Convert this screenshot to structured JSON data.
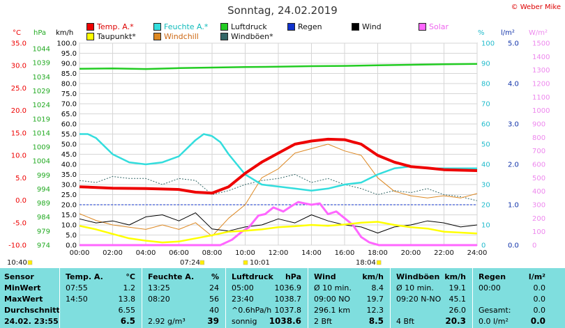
{
  "title": "Sonntag, 24.02.2019",
  "copyright": "© Weber Mike",
  "legend": [
    {
      "label": "Temp. A.*",
      "color": "#ee0000"
    },
    {
      "label": "Feuchte A.*",
      "color": "#33dddd"
    },
    {
      "label": "Luftdruck",
      "color": "#22cc22"
    },
    {
      "label": "Regen",
      "color": "#1133cc"
    },
    {
      "label": "Wind",
      "color": "#000000"
    },
    {
      "label": "Solar",
      "color": "#ff66ff"
    },
    {
      "label": "Taupunkt*",
      "color": "#ffff00"
    },
    {
      "label": "Windchill",
      "color": "#dd8822"
    },
    {
      "label": "Windböen*",
      "color": "#336666"
    }
  ],
  "axes": {
    "temp": {
      "unit": "°C",
      "ticks": [
        "35.0",
        "30.0",
        "25.0",
        "20.0",
        "15.0",
        "10.0",
        "5.0",
        "0.0",
        "-5.0",
        "-10.0"
      ],
      "range": [
        -10,
        35
      ],
      "color": "#ee0000"
    },
    "pressure": {
      "unit": "hPa",
      "ticks": [
        "1044",
        "1039",
        "1034",
        "1029",
        "1024",
        "1019",
        "1014",
        "1009",
        "1004",
        "999",
        "994",
        "989",
        "984",
        "979",
        "974"
      ],
      "range": [
        974,
        1046
      ],
      "color": "#22aa22"
    },
    "wind": {
      "unit": "km/h",
      "ticks": [
        "100.0",
        "95.0",
        "90.0",
        "85.0",
        "80.0",
        "75.0",
        "70.0",
        "65.0",
        "60.0",
        "55.0",
        "50.0",
        "45.0",
        "40.0",
        "35.0",
        "30.0",
        "25.0",
        "20.0",
        "15.0",
        "10.0",
        "5.0",
        "0.0"
      ],
      "range": [
        0,
        100
      ],
      "color": "#000000"
    },
    "humidity": {
      "unit": "%",
      "ticks": [
        "100",
        "90",
        "80",
        "70",
        "60",
        "50",
        "40",
        "30",
        "20",
        "10",
        "0"
      ],
      "range": [
        0,
        100
      ],
      "color": "#22bbcc"
    },
    "rain": {
      "unit": "l/m²",
      "ticks": [
        "5.0",
        "4.0",
        "3.0",
        "2.0",
        "1.0",
        "0.0"
      ],
      "range": [
        0,
        5
      ],
      "color": "#1133aa"
    },
    "solar": {
      "unit": "W/m²",
      "ticks": [
        "1500",
        "1400",
        "1300",
        "1200",
        "1100",
        "1000",
        "900",
        "800",
        "700",
        "600",
        "500",
        "400",
        "300",
        "200",
        "100",
        "0"
      ],
      "range": [
        0,
        1500
      ],
      "color": "#ee88ee"
    },
    "x_ticks": [
      "00:00",
      "02:00",
      "04:00",
      "06:00",
      "08:00",
      "10:00",
      "12:00",
      "14:00",
      "16:00",
      "18:00",
      "20:00",
      "22:00",
      "24:00"
    ]
  },
  "time_markers": [
    {
      "label": "10:40",
      "hour": null
    },
    {
      "label": "07:24",
      "hour": 7.4
    },
    {
      "label": "10:01",
      "hour": 10.02
    },
    {
      "label": "18:04",
      "hour": 18.07
    }
  ],
  "chart_data": {
    "type": "line",
    "x_range": [
      0,
      24
    ],
    "series": [
      {
        "name": "Temp. A.*",
        "axis": "temp",
        "color": "#ee0000",
        "x": [
          0,
          2,
          4,
          6,
          7,
          8,
          9,
          10,
          11,
          12,
          13,
          14,
          15,
          16,
          17,
          18,
          19,
          20,
          21,
          22,
          23,
          24
        ],
        "y": [
          3.0,
          2.7,
          2.6,
          2.4,
          1.8,
          1.6,
          3.0,
          6.0,
          8.5,
          10.5,
          12.5,
          13.2,
          13.6,
          13.5,
          12.5,
          10.0,
          8.5,
          7.5,
          7.2,
          6.8,
          6.7,
          6.6
        ]
      },
      {
        "name": "Feuchte A.*",
        "axis": "humidity",
        "color": "#33dddd",
        "x": [
          0,
          0.5,
          1,
          2,
          3,
          4,
          5,
          6,
          7,
          7.5,
          8,
          8.5,
          9,
          10,
          11,
          12,
          13,
          14,
          15,
          16,
          17,
          18,
          19,
          20,
          21,
          22,
          23,
          24
        ],
        "y": [
          55,
          55,
          53,
          45,
          41,
          40,
          41,
          44,
          52,
          55,
          54,
          51,
          45,
          35,
          30,
          29,
          28,
          27,
          28,
          30,
          31,
          35,
          38,
          39,
          38,
          38,
          38,
          38
        ]
      },
      {
        "name": "Luftdruck",
        "axis": "pressure",
        "color": "#22cc22",
        "x": [
          0,
          2,
          4,
          6,
          8,
          10,
          12,
          14,
          16,
          18,
          20,
          22,
          24
        ],
        "y": [
          1036.9,
          1037.0,
          1036.8,
          1037.1,
          1037.3,
          1037.5,
          1037.6,
          1037.8,
          1037.9,
          1038.1,
          1038.3,
          1038.5,
          1038.6
        ]
      },
      {
        "name": "Taupunkt*",
        "axis": "temp",
        "color": "#ffff00",
        "x": [
          0,
          1,
          2,
          3,
          4,
          5,
          6,
          7,
          8,
          9,
          10,
          11,
          12,
          13,
          14,
          15,
          16,
          17,
          18,
          19,
          20,
          21,
          22,
          23,
          24
        ],
        "y": [
          -5.7,
          -6.5,
          -7.5,
          -8.5,
          -9.0,
          -9.4,
          -9.2,
          -8.5,
          -7.8,
          -7.0,
          -6.8,
          -6.5,
          -6.0,
          -5.8,
          -5.5,
          -5.7,
          -5.4,
          -5.0,
          -4.8,
          -5.5,
          -6.0,
          -6.3,
          -7.0,
          -7.2,
          -7.4
        ]
      },
      {
        "name": "Solar",
        "axis": "solar",
        "color": "#ff66ff",
        "x": [
          0,
          8.5,
          9.2,
          9.8,
          10.2,
          10.8,
          11.2,
          11.7,
          12.3,
          12.8,
          13.2,
          13.6,
          14.0,
          14.5,
          15.0,
          15.5,
          16.0,
          16.5,
          17.0,
          17.5,
          18.07,
          24
        ],
        "y": [
          0,
          0,
          40,
          100,
          130,
          220,
          230,
          280,
          250,
          290,
          320,
          310,
          300,
          310,
          230,
          250,
          200,
          150,
          60,
          20,
          0,
          0
        ]
      },
      {
        "name": "Wind",
        "axis": "wind",
        "color": "#000000",
        "x": [
          0,
          1,
          2,
          3,
          4,
          5,
          6,
          7,
          8,
          9,
          10,
          11,
          12,
          13,
          14,
          15,
          16,
          17,
          18,
          19,
          20,
          21,
          22,
          23,
          24
        ],
        "y": [
          13,
          11,
          12,
          10,
          14,
          15,
          12,
          16,
          8,
          7,
          9,
          10,
          13,
          11,
          15,
          12,
          10,
          9,
          6,
          9,
          10,
          12,
          11,
          9,
          10
        ]
      },
      {
        "name": "Windchill",
        "axis": "temp",
        "color": "#dd8822",
        "x": [
          0,
          1,
          2,
          3,
          4,
          5,
          6,
          7,
          8,
          9,
          10,
          11,
          12,
          13,
          14,
          15,
          16,
          17,
          18,
          19,
          20,
          21,
          22,
          23,
          24
        ],
        "y": [
          -3.0,
          -4.5,
          -5.5,
          -6.0,
          -6.5,
          -5.5,
          -6.5,
          -5.0,
          -8.0,
          -4.0,
          -1.0,
          5.0,
          7.0,
          10.5,
          11.5,
          12.5,
          11.0,
          10.0,
          5.0,
          2.0,
          1.0,
          0.5,
          1.0,
          0.5,
          1.5
        ]
      },
      {
        "name": "Windböen*",
        "axis": "wind",
        "color": "#336666",
        "x": [
          0,
          1,
          2,
          3,
          4,
          5,
          6,
          7,
          8,
          9,
          10,
          11,
          12,
          13,
          14,
          15,
          16,
          17,
          18,
          19,
          20,
          21,
          22,
          23,
          24
        ],
        "y": [
          32,
          31,
          34,
          33,
          33,
          30,
          33,
          32,
          25,
          27,
          30,
          32,
          33,
          35,
          31,
          33,
          30,
          28,
          25,
          27,
          26,
          28,
          25,
          24,
          22
        ]
      }
    ]
  },
  "table": {
    "row_labels": [
      "Sensor",
      "MinWert",
      "MaxWert",
      "Durchschnitt",
      "24.02. 23:55"
    ],
    "columns": [
      {
        "head": "Temp. A.",
        "unit": "°C",
        "rows": [
          [
            "07:55",
            "1.2"
          ],
          [
            "14:50",
            "13.8"
          ],
          [
            "",
            "6.55"
          ],
          [
            "",
            "6.5"
          ]
        ]
      },
      {
        "head": "Feuchte A.",
        "unit": "%",
        "rows": [
          [
            "13:25",
            "24"
          ],
          [
            "08:20",
            "56"
          ],
          [
            "",
            "40"
          ],
          [
            "2.92 g/m³",
            "39"
          ]
        ]
      },
      {
        "head": "Luftdruck",
        "unit": "hPa",
        "rows": [
          [
            "05:00",
            "1036.9"
          ],
          [
            "23:40",
            "1038.7"
          ],
          [
            "^0.6hPa/h",
            "1037.8"
          ],
          [
            "sonnig",
            "1038.6"
          ]
        ]
      },
      {
        "head": "Wind",
        "unit": "km/h",
        "rows": [
          [
            "Ø 10 min.",
            "8.4"
          ],
          [
            "09:00  NO",
            "19.7"
          ],
          [
            "296.1 km",
            "12.3"
          ],
          [
            "2 Bft",
            "8.5"
          ]
        ]
      },
      {
        "head": "Windböen",
        "unit": "km/h",
        "rows": [
          [
            "Ø 10 min.",
            "19.1"
          ],
          [
            "09:20  N-NO",
            "45.1"
          ],
          [
            "",
            "26.0"
          ],
          [
            "4 Bft",
            "20.3"
          ]
        ]
      },
      {
        "head": "Regen",
        "unit": "l/m²",
        "rows": [
          [
            "00:00",
            "0.0"
          ],
          [
            "",
            "0.0"
          ],
          [
            "Gesamt:",
            "0.0"
          ],
          [
            "0.0 l/m²",
            "0.0"
          ]
        ]
      }
    ]
  }
}
